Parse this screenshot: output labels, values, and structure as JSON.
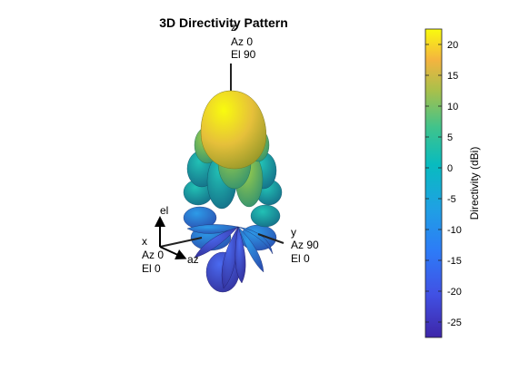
{
  "chart_data": {
    "type": "3d-radiation-pattern",
    "title": "3D Directivity Pattern",
    "colorbar": {
      "label": "Directivity (dBi)",
      "range": [
        -27.5,
        22.5
      ],
      "ticks": [
        20,
        15,
        10,
        5,
        0,
        -5,
        -10,
        -15,
        -20,
        -25
      ],
      "colormap": "parula"
    },
    "axes": {
      "z": {
        "name": "z",
        "az": "Az 0",
        "el": "El 90"
      },
      "y": {
        "name": "y",
        "az": "Az 90",
        "el": "El 0"
      },
      "x": {
        "name": "x",
        "az": "Az 0",
        "el": "El 0"
      },
      "el_label": "el",
      "az_label": "az"
    },
    "main_lobe": {
      "direction": "z",
      "peak_dbi": 22
    }
  }
}
